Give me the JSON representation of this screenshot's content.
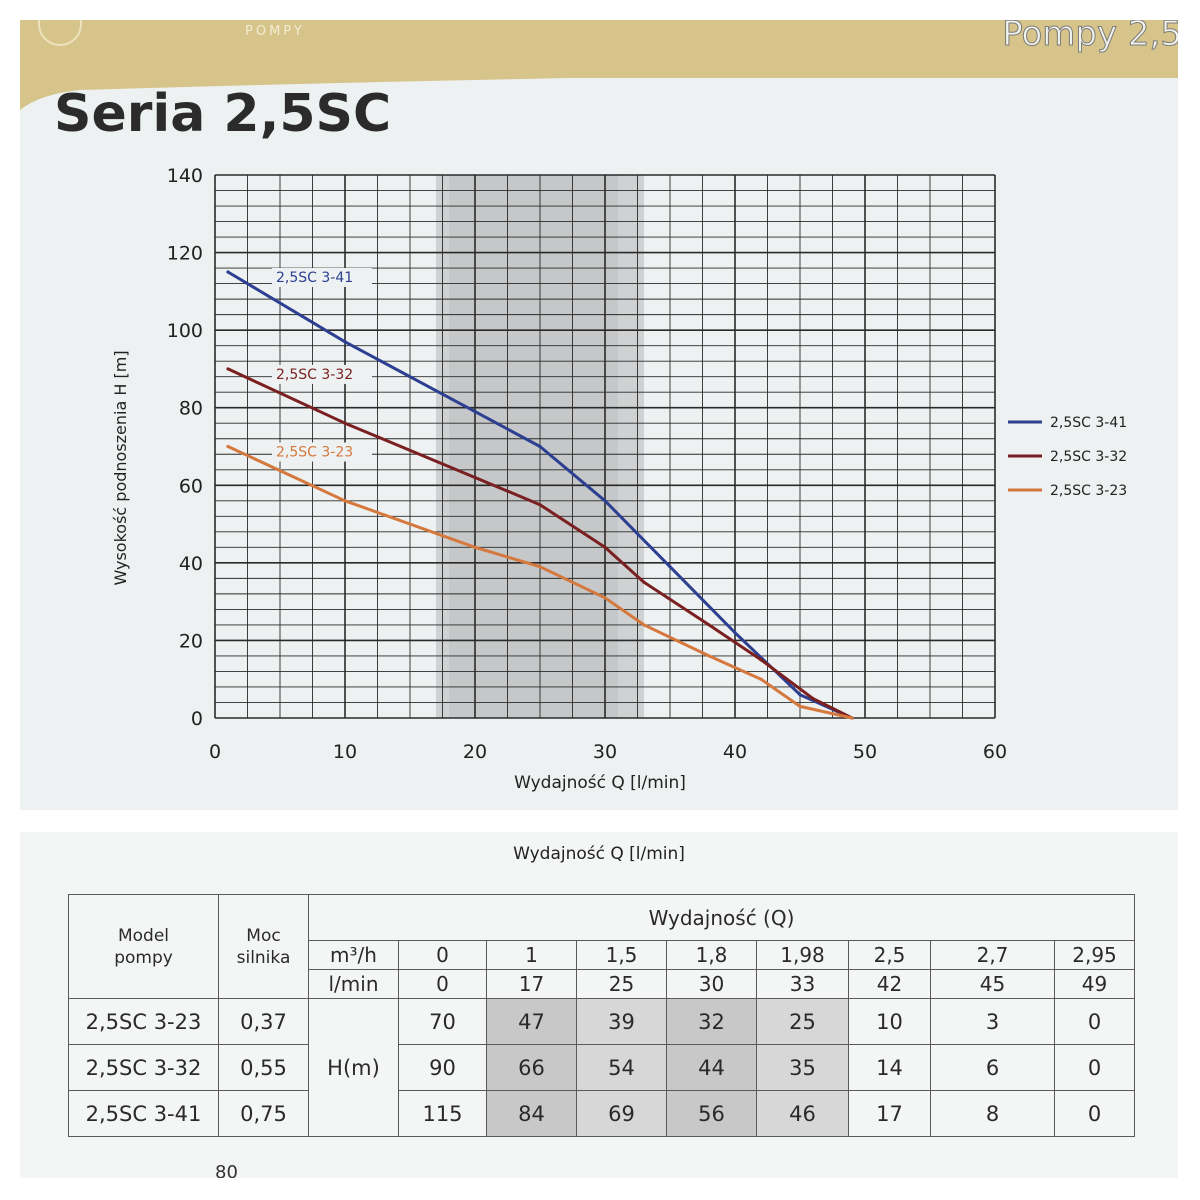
{
  "header": {
    "brand": "POMPY",
    "right_title": "Pompy 2,5",
    "series_title": "Seria 2,5SC"
  },
  "chart_data": {
    "type": "line",
    "xlabel": "Wydajność Q [l/min]",
    "ylabel": "Wysokość podnoszenia H [m]",
    "xlim": [
      0,
      60
    ],
    "ylim": [
      0,
      140
    ],
    "x_ticks": [
      0,
      10,
      20,
      30,
      40,
      50,
      60
    ],
    "y_ticks": [
      0,
      20,
      40,
      60,
      80,
      100,
      120,
      140
    ],
    "grid": true,
    "legend_position": "right",
    "shaded_band_x": [
      17,
      33
    ],
    "series": [
      {
        "name": "2,5SC 3-41",
        "color": "#2c3f91",
        "x": [
          1,
          10,
          20,
          25,
          30,
          35,
          40,
          45,
          49
        ],
        "y": [
          115,
          97,
          79,
          70,
          56,
          39,
          22,
          6,
          0
        ]
      },
      {
        "name": "2,5SC 3-32",
        "color": "#7a2020",
        "x": [
          1,
          10,
          20,
          25,
          30,
          33,
          38,
          42,
          46,
          49
        ],
        "y": [
          90,
          76,
          62,
          55,
          44,
          35,
          24,
          15,
          5,
          0
        ]
      },
      {
        "name": "2,5SC 3-23",
        "color": "#d5783d",
        "x": [
          1,
          10,
          20,
          25,
          30,
          33,
          38,
          42,
          45,
          49
        ],
        "y": [
          70,
          56,
          44,
          39,
          31,
          24,
          16,
          10,
          3,
          0
        ]
      }
    ]
  },
  "table": {
    "caption": "Wydajność Q [l/min]",
    "col_model": "Model pompy",
    "col_power": "Moc silnika",
    "group_header": "Wydajność (Q)",
    "unit_m3h": "m³/h",
    "unit_lmin": "l/min",
    "m3h": [
      "0",
      "1",
      "1,5",
      "1,8",
      "1,98",
      "2,5",
      "2,7",
      "2,95"
    ],
    "lmin": [
      "0",
      "17",
      "25",
      "30",
      "33",
      "42",
      "45",
      "49"
    ],
    "h_label": "H(m)",
    "rows": [
      {
        "model": "2,5SC 3-23",
        "power": "0,37",
        "h": [
          "70",
          "47",
          "39",
          "32",
          "25",
          "10",
          "3",
          "0"
        ]
      },
      {
        "model": "2,5SC 3-32",
        "power": "0,55",
        "h": [
          "90",
          "66",
          "54",
          "44",
          "35",
          "14",
          "6",
          "0"
        ]
      },
      {
        "model": "2,5SC 3-41",
        "power": "0,75",
        "h": [
          "115",
          "84",
          "69",
          "56",
          "46",
          "17",
          "8",
          "0"
        ]
      }
    ]
  },
  "footer": {
    "page_number": "80"
  }
}
